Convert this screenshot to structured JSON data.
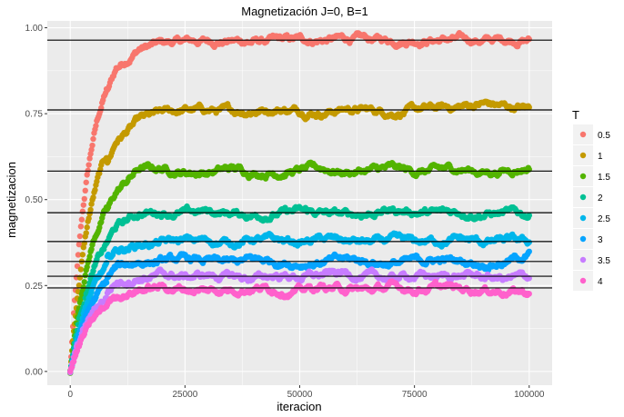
{
  "chart_data": {
    "type": "scatter",
    "title": "Magnetización J=0, B=1",
    "xlabel": "iteracion",
    "ylabel": "magnetizacion",
    "xlim": [
      -5000,
      105000
    ],
    "ylim": [
      -0.04,
      1.02
    ],
    "x_ticks": [
      0,
      25000,
      50000,
      75000,
      100000
    ],
    "x_tick_labels": [
      "0",
      "25000",
      "50000",
      "75000",
      "100000"
    ],
    "y_ticks": [
      0.0,
      0.25,
      0.5,
      0.75,
      1.0
    ],
    "y_tick_labels": [
      "0.00",
      "0.25",
      "0.50",
      "0.75",
      "1.00"
    ],
    "grid": true,
    "legend_title": "T",
    "legend_position": "right",
    "series": [
      {
        "name": "0.5",
        "color": "#F8766D",
        "equilibrium": 0.964,
        "tau": 4200,
        "x": [
          0,
          5000,
          10000,
          15000,
          20000,
          25000,
          30000,
          35000,
          40000,
          45000,
          50000,
          55000,
          60000,
          65000,
          70000,
          75000,
          80000,
          85000,
          90000,
          95000,
          100000
        ],
        "y": [
          0.0,
          0.7,
          0.88,
          0.94,
          0.955,
          0.96,
          0.962,
          0.962,
          0.96,
          0.962,
          0.964,
          0.965,
          0.968,
          0.965,
          0.964,
          0.966,
          0.966,
          0.965,
          0.963,
          0.966,
          0.965
        ]
      },
      {
        "name": "1",
        "color": "#C49A00",
        "equilibrium": 0.761,
        "tau": 4600,
        "x": [
          0,
          5000,
          10000,
          15000,
          20000,
          25000,
          30000,
          35000,
          40000,
          45000,
          50000,
          55000,
          60000,
          65000,
          70000,
          75000,
          80000,
          85000,
          90000,
          95000,
          100000
        ],
        "y": [
          0.0,
          0.5,
          0.67,
          0.73,
          0.75,
          0.76,
          0.76,
          0.755,
          0.76,
          0.765,
          0.76,
          0.755,
          0.765,
          0.76,
          0.755,
          0.76,
          0.765,
          0.77,
          0.78,
          0.77,
          0.765
        ]
      },
      {
        "name": "1.5",
        "color": "#53B400",
        "equilibrium": 0.583,
        "tau": 4800,
        "x": [
          0,
          5000,
          10000,
          15000,
          20000,
          25000,
          30000,
          35000,
          40000,
          45000,
          50000,
          55000,
          60000,
          65000,
          70000,
          75000,
          80000,
          85000,
          90000,
          95000,
          100000
        ],
        "y": [
          0.0,
          0.38,
          0.52,
          0.59,
          0.59,
          0.58,
          0.58,
          0.59,
          0.58,
          0.58,
          0.585,
          0.59,
          0.58,
          0.585,
          0.59,
          0.58,
          0.585,
          0.59,
          0.58,
          0.585,
          0.595
        ]
      },
      {
        "name": "2",
        "color": "#00C094",
        "equilibrium": 0.462,
        "tau": 5000,
        "x": [
          0,
          5000,
          10000,
          15000,
          20000,
          25000,
          30000,
          35000,
          40000,
          45000,
          50000,
          55000,
          60000,
          65000,
          70000,
          75000,
          80000,
          85000,
          90000,
          95000,
          100000
        ],
        "y": [
          0.0,
          0.3,
          0.42,
          0.46,
          0.465,
          0.46,
          0.465,
          0.46,
          0.455,
          0.46,
          0.465,
          0.46,
          0.455,
          0.46,
          0.47,
          0.465,
          0.46,
          0.465,
          0.46,
          0.46,
          0.455
        ]
      },
      {
        "name": "2.5",
        "color": "#00B6EB",
        "equilibrium": 0.378,
        "tau": 5000,
        "x": [
          0,
          5000,
          10000,
          15000,
          20000,
          25000,
          30000,
          35000,
          40000,
          45000,
          50000,
          55000,
          60000,
          65000,
          70000,
          75000,
          80000,
          85000,
          90000,
          95000,
          100000
        ],
        "y": [
          0.0,
          0.26,
          0.35,
          0.37,
          0.375,
          0.38,
          0.38,
          0.375,
          0.385,
          0.38,
          0.375,
          0.385,
          0.38,
          0.375,
          0.38,
          0.375,
          0.38,
          0.385,
          0.375,
          0.38,
          0.375
        ]
      },
      {
        "name": "3",
        "color": "#06A4FF",
        "equilibrium": 0.32,
        "tau": 5000,
        "x": [
          0,
          5000,
          10000,
          15000,
          20000,
          25000,
          30000,
          35000,
          40000,
          45000,
          50000,
          55000,
          60000,
          65000,
          70000,
          75000,
          80000,
          85000,
          90000,
          95000,
          100000
        ],
        "y": [
          0.0,
          0.22,
          0.3,
          0.32,
          0.32,
          0.325,
          0.32,
          0.315,
          0.325,
          0.32,
          0.315,
          0.32,
          0.325,
          0.32,
          0.315,
          0.32,
          0.325,
          0.32,
          0.315,
          0.32,
          0.34
        ]
      },
      {
        "name": "3.5",
        "color": "#C77CFF",
        "equilibrium": 0.277,
        "tau": 5200,
        "x": [
          0,
          5000,
          10000,
          15000,
          20000,
          25000,
          30000,
          35000,
          40000,
          45000,
          50000,
          55000,
          60000,
          65000,
          70000,
          75000,
          80000,
          85000,
          90000,
          95000,
          100000
        ],
        "y": [
          0.0,
          0.19,
          0.26,
          0.275,
          0.28,
          0.275,
          0.28,
          0.275,
          0.27,
          0.28,
          0.275,
          0.28,
          0.285,
          0.275,
          0.27,
          0.28,
          0.275,
          0.28,
          0.275,
          0.27,
          0.275
        ]
      },
      {
        "name": "4",
        "color": "#FF61CC",
        "equilibrium": 0.243,
        "tau": 5400,
        "x": [
          0,
          5000,
          10000,
          15000,
          20000,
          25000,
          30000,
          35000,
          40000,
          45000,
          50000,
          55000,
          60000,
          65000,
          70000,
          75000,
          80000,
          85000,
          90000,
          95000,
          100000
        ],
        "y": [
          -0.01,
          0.16,
          0.22,
          0.24,
          0.245,
          0.24,
          0.235,
          0.24,
          0.245,
          0.24,
          0.235,
          0.245,
          0.24,
          0.235,
          0.245,
          0.24,
          0.245,
          0.24,
          0.24,
          0.235,
          0.23
        ]
      }
    ],
    "reference_lines_y": [
      0.964,
      0.761,
      0.583,
      0.462,
      0.378,
      0.32,
      0.277,
      0.243
    ]
  }
}
